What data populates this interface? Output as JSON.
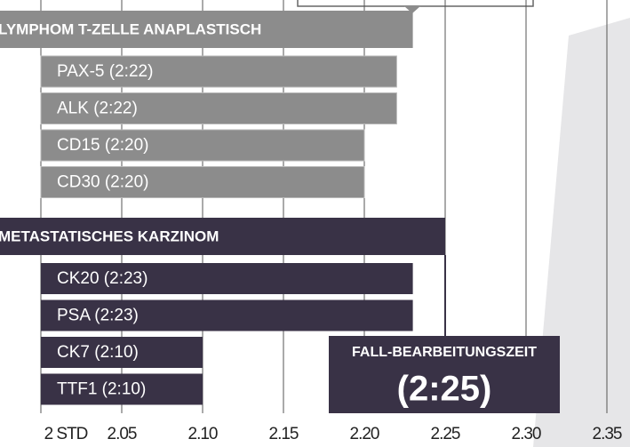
{
  "chart_data": {
    "type": "bar",
    "groups": [
      {
        "label": "LYMPHOM T-ZELLE ANAPLASTISCH",
        "value": 2.23,
        "color": "#8c8c8c",
        "items": [
          {
            "label": "PAX-5 (2:22)",
            "value": 2.22
          },
          {
            "label": "ALK (2:22)",
            "value": 2.22
          },
          {
            "label": "CD15 (2:20)",
            "value": 2.2
          },
          {
            "label": "CD30 (2:20)",
            "value": 2.2
          }
        ]
      },
      {
        "label": "METASTATISCHES KARZINOM",
        "value": 2.25,
        "color": "#393246",
        "items": [
          {
            "label": "CK20 (2:23)",
            "value": 2.23
          },
          {
            "label": "PSA (2:23)",
            "value": 2.23
          },
          {
            "label": "CK7 (2:10)",
            "value": 2.1
          },
          {
            "label": "TTF1 (2:10)",
            "value": 2.1
          }
        ]
      }
    ],
    "annotation": {
      "label": "FALL-BEARBEITUNGSZEIT",
      "value": 2.25,
      "value_label": "(2:25)"
    },
    "xlim": [
      2,
      2.35
    ],
    "xticks": [
      {
        "value": 2,
        "label": "2 STD"
      },
      2.05,
      {
        "value": 2.1,
        "label": "2.10"
      },
      2.15,
      {
        "value": 2.2,
        "label": "2.20"
      },
      2.25,
      {
        "value": 2.3,
        "label": "2.30"
      },
      2.35
    ],
    "grid": true
  }
}
